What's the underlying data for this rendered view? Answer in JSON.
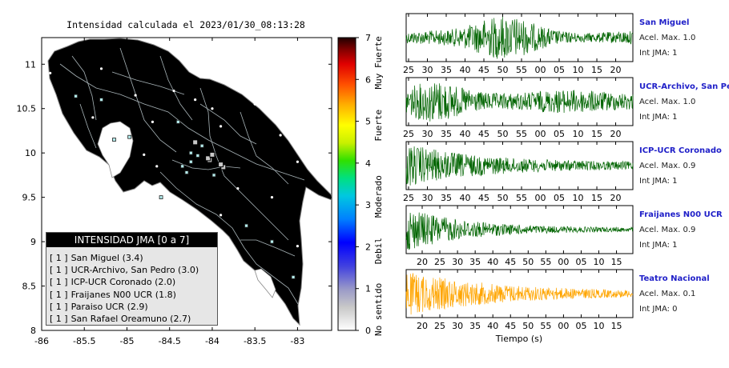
{
  "map": {
    "title": "Intensidad calculada el 2023/01/30_08:13:28",
    "x_ticks": [
      "-86",
      "-85.5",
      "-85",
      "-84.5",
      "-84",
      "-83.5",
      "-83"
    ],
    "y_ticks": [
      "11",
      "10.5",
      "10",
      "9.5",
      "9",
      "8.5",
      "8"
    ],
    "colorbar_ticks": [
      "7",
      "6",
      "5",
      "4",
      "3",
      "2",
      "1",
      "0"
    ],
    "colorbar_labels": [
      "Muy Fuerte",
      "Fuerte",
      "Moderado",
      "Debil",
      "No sentido"
    ],
    "land_color": "#b4ecec",
    "legend_title": "INTENSIDAD JMA [0 a 7]",
    "legend_items": [
      {
        "marker": "[ 1 ]",
        "label": "San Miguel (3.4)"
      },
      {
        "marker": "[ 1 ]",
        "label": "UCR-Archivo, San Pedro (3.0)"
      },
      {
        "marker": "[ 1 ]",
        "label": "ICP-UCR Coronado (2.0)"
      },
      {
        "marker": "[ 1 ]",
        "label": "Fraijanes N00 UCR (1.8)"
      },
      {
        "marker": "[ 1 ]",
        "label": "Paraiso UCR (2.9)"
      },
      {
        "marker": "[ 1 ]",
        "label": "San Rafael Oreamuno (2.7)"
      }
    ]
  },
  "waveforms": [
    {
      "name": "San Miguel",
      "accel": "Acel. Max. 1.0",
      "jma": "Int JMA: 1",
      "color": "#006400",
      "ticks": [
        "25",
        "30",
        "35",
        "40",
        "45",
        "50",
        "55",
        "00",
        "05",
        "10",
        "15",
        "20"
      ]
    },
    {
      "name": "UCR-Archivo, San Pedro",
      "accel": "Acel. Max. 1.0",
      "jma": "Int JMA: 1",
      "color": "#006400",
      "ticks": [
        "25",
        "30",
        "35",
        "40",
        "45",
        "50",
        "55",
        "00",
        "05",
        "10",
        "15",
        "20"
      ]
    },
    {
      "name": "ICP-UCR Coronado",
      "accel": "Acel. Max. 0.9",
      "jma": "Int JMA: 1",
      "color": "#006400",
      "ticks": [
        "25",
        "30",
        "35",
        "40",
        "45",
        "50",
        "55",
        "00",
        "05",
        "10",
        "15",
        "20"
      ]
    },
    {
      "name": "Fraijanes N00 UCR",
      "accel": "Acel. Max. 0.9",
      "jma": "Int JMA: 1",
      "color": "#006400",
      "ticks": [
        "20",
        "25",
        "30",
        "35",
        "40",
        "45",
        "50",
        "55",
        "00",
        "05",
        "10",
        "15"
      ]
    },
    {
      "name": "Teatro Nacional",
      "accel": "Acel. Max. 0.1",
      "jma": "Int JMA: 0",
      "color": "#ffa500",
      "ticks": [
        "20",
        "25",
        "30",
        "35",
        "40",
        "45",
        "50",
        "55",
        "00",
        "05",
        "10",
        "15"
      ]
    }
  ],
  "x_axis_label": "Tiempo (s)",
  "chart_data": [
    {
      "type": "scatter",
      "title": "Intensidad calculada el 2023/01/30_08:13:28",
      "xlim": [
        -86,
        -82.6
      ],
      "ylim": [
        8,
        11.3
      ],
      "colorbar": {
        "min": 0,
        "max": 7
      },
      "series": [
        {
          "name": "San Miguel (3.4)",
          "points": [
            [
              -84.03,
              9.92
            ]
          ]
        },
        {
          "name": "UCR-Archivo, San Pedro (3.0)",
          "points": [
            [
              -84.05,
              9.94
            ]
          ]
        },
        {
          "name": "ICP-UCR Coronado (2.0)",
          "points": [
            [
              -84.0,
              9.98
            ]
          ]
        },
        {
          "name": "Fraijanes N00 UCR (1.8)",
          "points": [
            [
              -84.2,
              10.12
            ]
          ]
        },
        {
          "name": "Paraiso UCR (2.9)",
          "points": [
            [
              -83.87,
              9.84
            ]
          ]
        },
        {
          "name": "San Rafael Oreamuno (2.7)",
          "points": [
            [
              -83.9,
              9.87
            ]
          ]
        }
      ]
    },
    {
      "type": "line",
      "x_label": "Tiempo (s)",
      "series": [
        {
          "name": "San Miguel",
          "peak": 1.0
        },
        {
          "name": "UCR-Archivo, San Pedro",
          "peak": 1.0
        },
        {
          "name": "ICP-UCR Coronado",
          "peak": 0.9
        },
        {
          "name": "Fraijanes N00 UCR",
          "peak": 0.9
        },
        {
          "name": "Teatro Nacional",
          "peak": 0.1
        }
      ]
    }
  ]
}
